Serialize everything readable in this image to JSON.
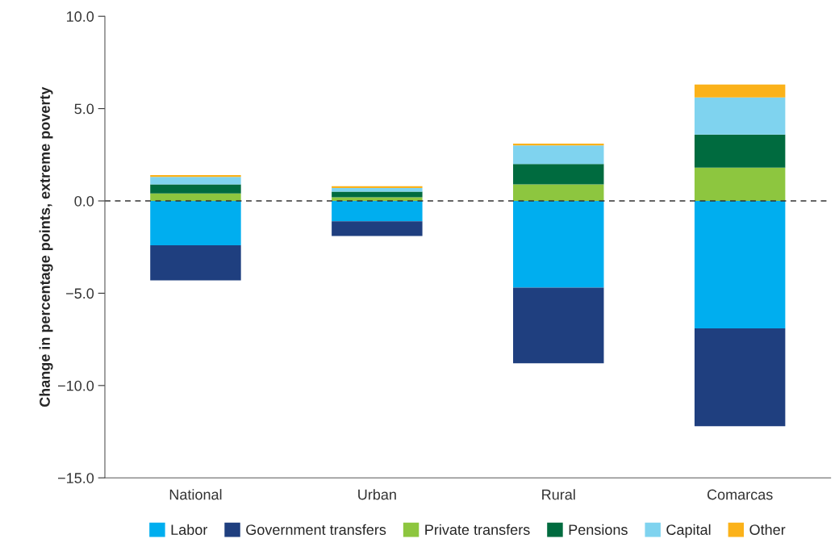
{
  "chart_data": {
    "type": "bar",
    "stacked": true,
    "ylabel": "Change in percentage points, extreme poverty",
    "categories": [
      "National",
      "Urban",
      "Rural",
      "Comarcas"
    ],
    "series": [
      {
        "name": "Labor",
        "color": "#00aeef",
        "values": [
          -2.4,
          -1.1,
          -4.7,
          -6.9
        ]
      },
      {
        "name": "Government transfers",
        "color": "#1f3f7f",
        "values": [
          -1.9,
          -0.8,
          -4.1,
          -5.3
        ]
      },
      {
        "name": "Private transfers",
        "color": "#8dc63f",
        "values": [
          0.4,
          0.2,
          0.9,
          1.8
        ]
      },
      {
        "name": "Pensions",
        "color": "#006b3f",
        "values": [
          0.5,
          0.3,
          1.1,
          1.8
        ]
      },
      {
        "name": "Capital",
        "color": "#7fd3ef",
        "values": [
          0.4,
          0.2,
          1.0,
          2.0
        ]
      },
      {
        "name": "Other",
        "color": "#fbb21a",
        "values": [
          0.1,
          0.1,
          0.1,
          0.7
        ]
      }
    ],
    "ylim": [
      -15,
      10
    ],
    "yticks": [
      {
        "value": -15,
        "label": "−15.0"
      },
      {
        "value": -10,
        "label": "−10.0"
      },
      {
        "value": -5,
        "label": "−5.0"
      },
      {
        "value": 0,
        "label": "0.0"
      },
      {
        "value": 5,
        "label": "5.0"
      },
      {
        "value": 10,
        "label": "10.0"
      }
    ],
    "ref_lines": [
      {
        "axis": "y",
        "value": 0,
        "line_style": "dashed",
        "color": "#333333"
      }
    ],
    "grid": false,
    "legend": "bottom"
  }
}
